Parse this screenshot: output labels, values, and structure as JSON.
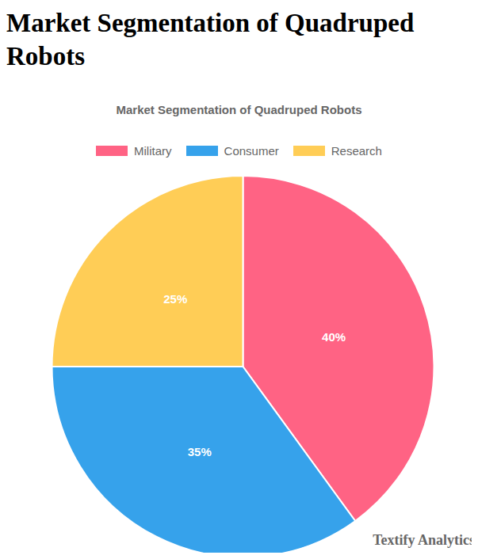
{
  "chart_data": {
    "type": "pie",
    "title": "Market Segmentation of Quadruped Robots",
    "categories": [
      "Military",
      "Consumer",
      "Research"
    ],
    "values": [
      40,
      35,
      25
    ],
    "value_labels": [
      "40%",
      "35%",
      "25%"
    ],
    "colors": [
      "#ff6384",
      "#36a2eb",
      "#ffcd56"
    ],
    "data_labels": true,
    "legend": "top",
    "annotations": [
      "Textify Analytics"
    ]
  }
}
